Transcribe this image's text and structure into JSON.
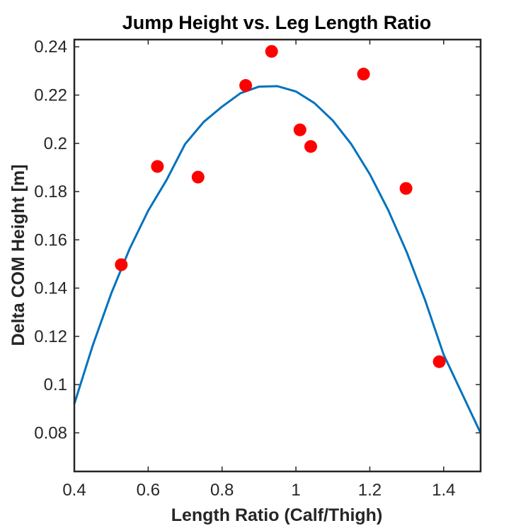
{
  "chart_data": {
    "type": "scatter",
    "title": "Jump Height vs. Leg Length Ratio",
    "xlabel": "Length Ratio (Calf/Thigh)",
    "ylabel": "Delta COM Height [m]",
    "xlim": [
      0.4,
      1.5
    ],
    "ylim": [
      0.064,
      0.243
    ],
    "xticks": [
      0.4,
      0.6,
      0.8,
      1.0,
      1.2,
      1.4
    ],
    "xtick_labels": [
      "0.4",
      "0.6",
      "0.8",
      "1",
      "1.2",
      "1.4"
    ],
    "yticks": [
      0.08,
      0.1,
      0.12,
      0.14,
      0.16,
      0.18,
      0.2,
      0.22,
      0.24
    ],
    "ytick_labels": [
      "0.08",
      "0.1",
      "0.12",
      "0.14",
      "0.16",
      "0.18",
      "0.2",
      "0.22",
      "0.24"
    ],
    "grid": false,
    "series": [
      {
        "type": "scatter",
        "color": "#ff0000",
        "x": [
          0.527,
          0.625,
          0.735,
          0.864,
          0.934,
          1.011,
          1.04,
          1.183,
          1.298,
          1.388
        ],
        "y": [
          0.1497,
          0.1904,
          0.186,
          0.224,
          0.2381,
          0.2056,
          0.1987,
          0.2287,
          0.1813,
          0.1095
        ]
      },
      {
        "type": "line",
        "color": "#0072bd",
        "x": [
          0.4,
          0.45,
          0.5,
          0.55,
          0.6,
          0.65,
          0.7,
          0.75,
          0.8,
          0.85,
          0.9,
          0.95,
          1.0,
          1.05,
          1.1,
          1.15,
          1.2,
          1.25,
          1.3,
          1.35,
          1.4,
          1.45,
          1.5
        ],
        "y": [
          0.092,
          0.1163,
          0.1378,
          0.1564,
          0.1721,
          0.1849,
          0.1997,
          0.2088,
          0.2152,
          0.2208,
          0.2235,
          0.2237,
          0.2215,
          0.2167,
          0.2094,
          0.1996,
          0.1872,
          0.1723,
          0.1549,
          0.1349,
          0.1124,
          0.0962,
          0.0799
        ]
      }
    ]
  }
}
